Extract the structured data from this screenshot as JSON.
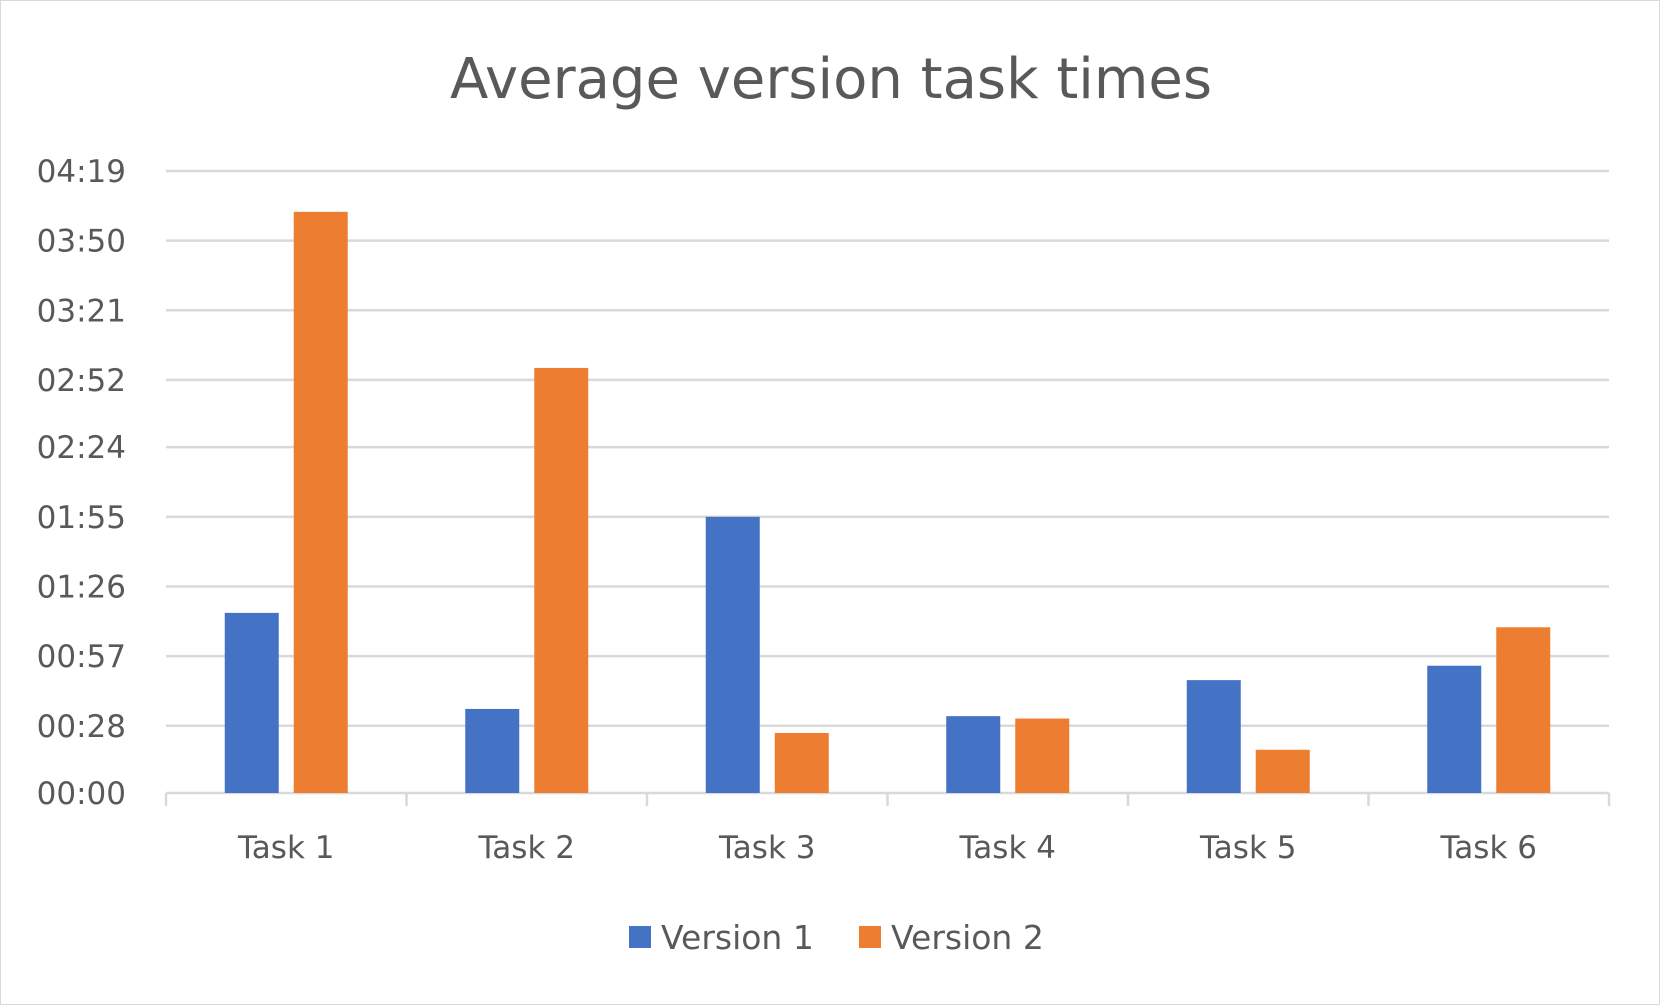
{
  "chart_data": {
    "type": "bar",
    "title": "Average version task times",
    "categories": [
      "Task 1",
      "Task 2",
      "Task 3",
      "Task 4",
      "Task 5",
      "Task 6"
    ],
    "y_unit": "mm:ss",
    "y_ticks": [
      "00:00",
      "00:28",
      "00:57",
      "01:26",
      "01:55",
      "02:24",
      "02:52",
      "03:21",
      "03:50",
      "04:19"
    ],
    "ylim": [
      "00:00",
      "04:19"
    ],
    "series": [
      {
        "name": "Version 1",
        "color": "#4472C4",
        "values": [
          "01:15",
          "00:35",
          "01:55",
          "00:32",
          "00:47",
          "00:53"
        ]
      },
      {
        "name": "Version 2",
        "color": "#ED7D31",
        "values": [
          "04:02",
          "02:57",
          "00:25",
          "00:31",
          "00:18",
          "01:09"
        ]
      }
    ],
    "grid": "horizontal",
    "legend": "bottom"
  }
}
